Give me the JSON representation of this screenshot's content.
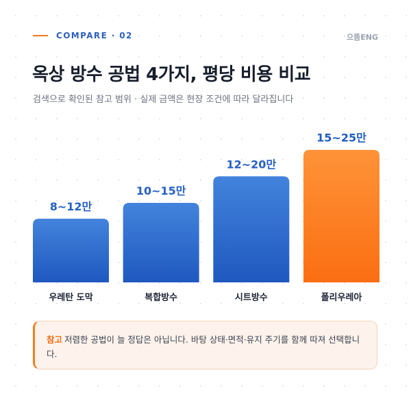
{
  "header": {
    "eyebrow": "COMPARE · 02",
    "brand": "으뜸ENG",
    "title": "옥상 방수 공법 4가지, 평당 비용 비교",
    "subtitle": "검색으로 확인된 참고 범위 · 실제 금액은 현장 조건에 따라 달라집니다"
  },
  "colors": {
    "blue_top": "#4383dc",
    "blue_bottom": "#1f58bf",
    "orange_top": "#ff9338",
    "orange_bottom": "#fb6e12",
    "value_blue": "#245fc4",
    "value_orange": "#1e5cc2",
    "category_text": "#1b2333"
  },
  "chart_data": {
    "type": "bar",
    "categories": [
      "우레탄 도막",
      "복합방수",
      "시트방수",
      "폴리우레아"
    ],
    "value_labels": [
      "8~12만",
      "10~15만",
      "12~20만",
      "15~25만"
    ],
    "values": [
      12,
      15,
      20,
      25
    ],
    "ranges": [
      [
        8,
        12
      ],
      [
        10,
        15
      ],
      [
        12,
        20
      ],
      [
        15,
        25
      ]
    ],
    "unit": "만",
    "highlight_index": 3,
    "ylim": [
      0,
      26.5
    ],
    "grid": false
  },
  "note": {
    "tag": "참고",
    "text": "저렴한 공법이 늘 정답은 아닙니다. 바탕 상태·면적·유지 주기를 함께 따져 선택합니다."
  }
}
